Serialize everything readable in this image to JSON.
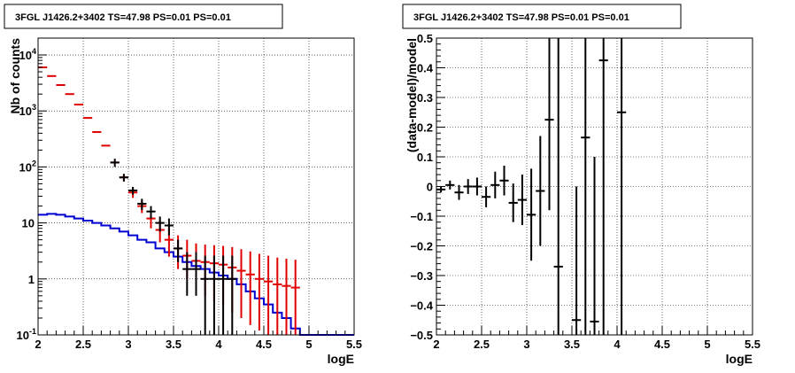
{
  "colors": {
    "data": "#000000",
    "model": "#e00000",
    "bkg": "#0000d0",
    "grid": "#000000"
  },
  "chart_data": [
    {
      "type": "scatter",
      "title": "3FGL J1426.2+3402 TS=47.98 PS=0.01 PS=0.01",
      "xlabel": "logE",
      "ylabel": "Nb of counts",
      "yscale": "log",
      "xlim": [
        2,
        5.5
      ],
      "ylim": [
        0.1,
        20000
      ],
      "grid": true,
      "xticks": [
        {
          "v": 2,
          "label": "2"
        },
        {
          "v": 2.5,
          "label": "2.5"
        },
        {
          "v": 3,
          "label": "3"
        },
        {
          "v": 3.5,
          "label": "3.5"
        },
        {
          "v": 4,
          "label": "4"
        },
        {
          "v": 4.5,
          "label": "4.5"
        },
        {
          "v": 5,
          "label": "5"
        },
        {
          "v": 5.5,
          "label": "5.5"
        }
      ],
      "yticks": [
        {
          "v": 0.1,
          "base": "10",
          "exp": "-1"
        },
        {
          "v": 1,
          "base": "1",
          "exp": ""
        },
        {
          "v": 10,
          "base": "10",
          "exp": ""
        },
        {
          "v": 100,
          "base": "10",
          "exp": "2"
        },
        {
          "v": 1000,
          "base": "10",
          "exp": "3"
        },
        {
          "v": 10000,
          "base": "10",
          "exp": "4"
        }
      ],
      "series": [
        {
          "role": "model",
          "color": "#e00000",
          "x": [
            2.05,
            2.15,
            2.25,
            2.35,
            2.45,
            2.55,
            2.65,
            2.75,
            2.85,
            2.95,
            3.05,
            3.15,
            3.25,
            3.35,
            3.45,
            3.55,
            3.65,
            3.75,
            3.85,
            3.95,
            4.05,
            4.15,
            4.25,
            4.35,
            4.45,
            4.55,
            4.65,
            4.75,
            4.85
          ],
          "y": [
            6000,
            4200,
            2900,
            2000,
            1300,
            750,
            420,
            240,
            120,
            65,
            35,
            20,
            12,
            7.5,
            5,
            3.5,
            2.6,
            2.1,
            2.0,
            1.9,
            1.8,
            1.6,
            1.4,
            1.2,
            1.0,
            0.9,
            0.8,
            0.75,
            0.7
          ],
          "ylow": [
            null,
            null,
            null,
            null,
            null,
            null,
            null,
            null,
            null,
            55,
            28,
            15,
            8,
            4.5,
            2.5,
            1.5,
            1.0,
            0.6,
            0.5,
            0.4,
            0.35,
            0.25,
            0.2,
            0.15,
            0.12,
            0.1,
            0.1,
            0.1,
            0.1
          ],
          "yhigh": [
            null,
            null,
            null,
            null,
            null,
            null,
            null,
            null,
            null,
            75,
            42,
            25,
            16,
            11,
            8,
            6,
            5,
            4.3,
            4.1,
            4.0,
            3.9,
            3.7,
            3.4,
            3.1,
            2.8,
            2.6,
            2.4,
            2.3,
            2.2
          ]
        },
        {
          "role": "data",
          "color": "#000000",
          "x": [
            2.85,
            2.95,
            3.05,
            3.15,
            3.25,
            3.35,
            3.45,
            3.55,
            3.65,
            3.75,
            3.85,
            3.95,
            4.05,
            4.15
          ],
          "y": [
            120,
            65,
            38,
            22,
            16,
            10,
            9,
            3.5,
            1.5,
            1.5,
            1.0,
            1.0,
            1.0,
            1.0
          ],
          "ylow": [
            100,
            55,
            32,
            17,
            12,
            7,
            6,
            2,
            0.5,
            0.5,
            0.1,
            0.1,
            0.1,
            0.1
          ],
          "yhigh": [
            140,
            75,
            44,
            27,
            20,
            13,
            12,
            5,
            3,
            3,
            2.6,
            2.6,
            2.6,
            2.6
          ]
        },
        {
          "role": "background",
          "color": "#0000d0",
          "style": "step",
          "edges": [
            2.0,
            2.1,
            2.2,
            2.3,
            2.4,
            2.5,
            2.6,
            2.7,
            2.8,
            2.9,
            3.0,
            3.1,
            3.2,
            3.3,
            3.4,
            3.5,
            3.6,
            3.7,
            3.8,
            3.9,
            4.0,
            4.1,
            4.2,
            4.3,
            4.4,
            4.5,
            4.6,
            4.7,
            4.8,
            4.9,
            5.0,
            5.5
          ],
          "y": [
            14,
            14.5,
            14,
            13,
            12,
            11,
            10,
            9,
            8,
            7,
            6,
            5,
            4.5,
            3.5,
            3,
            2.5,
            2,
            1.7,
            1.5,
            1.3,
            1.15,
            1.0,
            0.8,
            0.6,
            0.45,
            0.35,
            0.25,
            0.2,
            0.13,
            0.1,
            0.1
          ]
        }
      ]
    },
    {
      "type": "scatter",
      "title": "3FGL J1426.2+3402 TS=47.98 PS=0.01 PS=0.01",
      "xlabel": "logE",
      "ylabel": "(data-model)/model",
      "xlim": [
        2,
        5.5
      ],
      "ylim": [
        -0.5,
        0.5
      ],
      "grid": true,
      "xticks": [
        {
          "v": 2,
          "label": "2"
        },
        {
          "v": 2.5,
          "label": "2.5"
        },
        {
          "v": 3,
          "label": "3"
        },
        {
          "v": 3.5,
          "label": "3.5"
        },
        {
          "v": 4,
          "label": "4"
        },
        {
          "v": 4.5,
          "label": "4.5"
        },
        {
          "v": 5,
          "label": "5"
        },
        {
          "v": 5.5,
          "label": "5.5"
        }
      ],
      "yticks": [
        {
          "v": -0.5,
          "label": "−0.5"
        },
        {
          "v": -0.4,
          "label": "−0.4"
        },
        {
          "v": -0.3,
          "label": "−0.3"
        },
        {
          "v": -0.2,
          "label": "−0.2"
        },
        {
          "v": -0.1,
          "label": "−0.1"
        },
        {
          "v": 0,
          "label": "0"
        },
        {
          "v": 0.1,
          "label": "0.1"
        },
        {
          "v": 0.2,
          "label": "0.2"
        },
        {
          "v": 0.3,
          "label": "0.3"
        },
        {
          "v": 0.4,
          "label": "0.4"
        },
        {
          "v": 0.5,
          "label": "0.5"
        }
      ],
      "series": [
        {
          "role": "residual",
          "color": "#000000",
          "x": [
            2.05,
            2.15,
            2.25,
            2.35,
            2.45,
            2.55,
            2.65,
            2.75,
            2.85,
            2.95,
            3.05,
            3.15,
            3.25,
            3.35,
            3.55,
            3.65,
            3.75,
            3.85,
            4.05
          ],
          "y": [
            -0.01,
            0.005,
            -0.02,
            0.0,
            0.0,
            -0.035,
            0.005,
            0.02,
            -0.055,
            -0.045,
            -0.095,
            -0.015,
            0.225,
            -0.27,
            -0.45,
            0.165,
            -0.455,
            0.425,
            0.25
          ],
          "ylow": [
            -0.02,
            -0.01,
            -0.045,
            -0.025,
            -0.03,
            -0.07,
            -0.04,
            -0.03,
            -0.12,
            -0.13,
            -0.25,
            -0.2,
            -0.08,
            -0.5,
            -0.5,
            -0.5,
            -0.5,
            -0.5,
            -0.5
          ],
          "yhigh": [
            0.0,
            0.02,
            0.005,
            0.025,
            0.03,
            0.0,
            0.05,
            0.07,
            0.01,
            0.04,
            0.06,
            0.17,
            0.5,
            0.5,
            0.0,
            0.5,
            0.1,
            0.5,
            0.5
          ]
        }
      ]
    }
  ]
}
